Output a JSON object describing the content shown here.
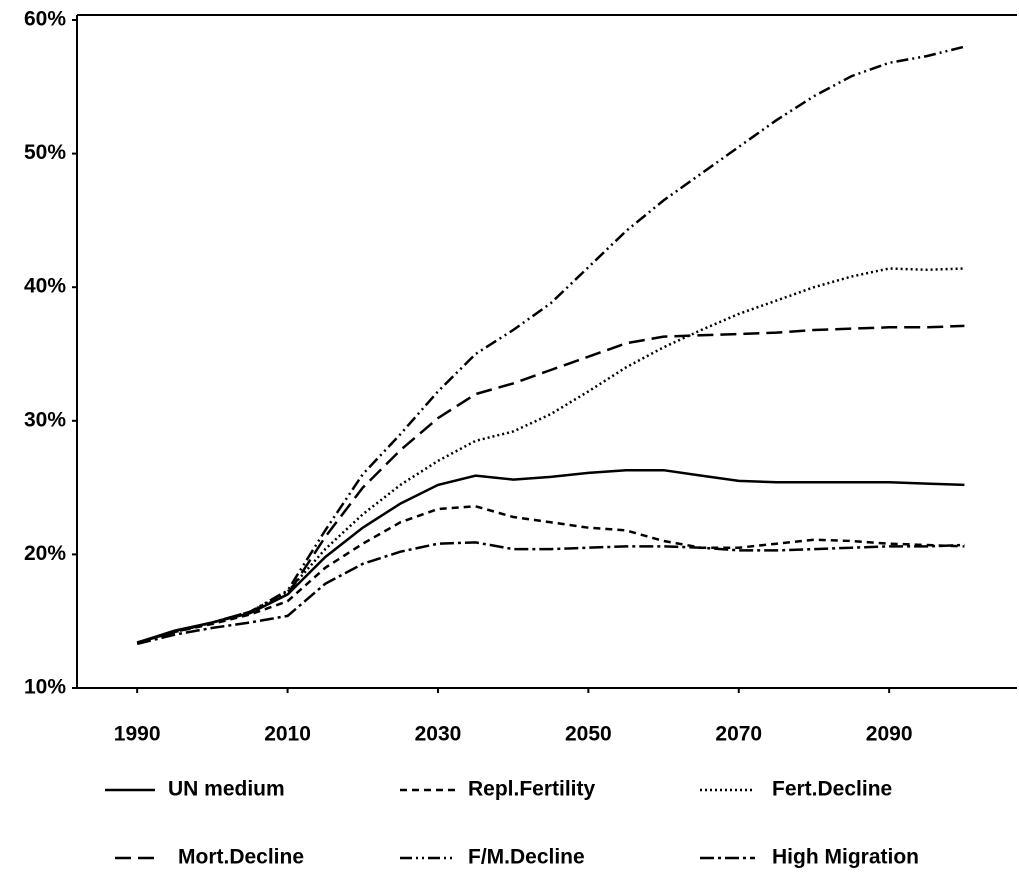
{
  "chart_data": {
    "type": "line",
    "x": [
      1990,
      1995,
      2000,
      2005,
      2010,
      2015,
      2020,
      2025,
      2030,
      2035,
      2040,
      2045,
      2050,
      2055,
      2060,
      2065,
      2070,
      2075,
      2080,
      2085,
      2090,
      2095,
      2100
    ],
    "xlim": [
      1982,
      2107
    ],
    "xticks": [
      1990,
      2010,
      2030,
      2050,
      2070,
      2090
    ],
    "ylim": [
      10,
      60
    ],
    "yticks": [
      {
        "value": 10,
        "label": "10%"
      },
      {
        "value": 20,
        "label": "20%"
      },
      {
        "value": 30,
        "label": "30%"
      },
      {
        "value": 40,
        "label": "40%"
      },
      {
        "value": 50,
        "label": "50%"
      },
      {
        "value": 60,
        "label": "60%"
      }
    ],
    "series": [
      {
        "name": "UN medium",
        "color": "#000000",
        "dash": "none",
        "values": [
          13.4,
          14.3,
          14.9,
          15.6,
          17.0,
          19.8,
          22.0,
          23.8,
          25.2,
          25.9,
          25.6,
          25.8,
          26.1,
          26.3,
          26.3,
          25.9,
          25.5,
          25.4,
          25.4,
          25.4,
          25.4,
          25.3,
          25.2
        ]
      },
      {
        "name": "Repl.Fertility",
        "color": "#000000",
        "dash": "7 5",
        "values": [
          13.4,
          14.2,
          14.8,
          15.5,
          16.5,
          19.0,
          20.8,
          22.4,
          23.4,
          23.6,
          22.8,
          22.4,
          22.0,
          21.8,
          21.0,
          20.5,
          20.5,
          20.8,
          21.1,
          21.0,
          20.8,
          20.7,
          20.6
        ]
      },
      {
        "name": "Fert.Decline",
        "color": "#000000",
        "dash": "2 3",
        "values": [
          13.4,
          14.2,
          14.9,
          15.7,
          17.2,
          20.4,
          23.0,
          25.2,
          27.0,
          28.5,
          29.2,
          30.5,
          32.2,
          34.0,
          35.5,
          36.8,
          38.0,
          39.0,
          40.0,
          40.8,
          41.4,
          41.3,
          41.4
        ]
      },
      {
        "name": "Mort.Decline",
        "color": "#000000",
        "dash": "16 7",
        "values": [
          13.4,
          14.2,
          14.9,
          15.7,
          17.0,
          21.3,
          25.0,
          27.8,
          30.2,
          32.0,
          32.8,
          33.8,
          34.8,
          35.8,
          36.3,
          36.4,
          36.5,
          36.6,
          36.8,
          36.9,
          37.0,
          37.0,
          37.1
        ]
      },
      {
        "name": "F/M.Decline",
        "color": "#000000",
        "dash": "12 4 2 4 2 4",
        "values": [
          13.4,
          14.2,
          14.9,
          15.7,
          17.3,
          21.8,
          26.0,
          29.0,
          32.2,
          35.0,
          36.8,
          38.8,
          41.5,
          44.2,
          46.5,
          48.5,
          50.5,
          52.5,
          54.3,
          55.8,
          56.8,
          57.3,
          58.0
        ]
      },
      {
        "name": "High Migration",
        "color": "#000000",
        "dash": "14 4 3 4",
        "values": [
          13.3,
          14.0,
          14.5,
          14.9,
          15.4,
          17.8,
          19.3,
          20.2,
          20.8,
          20.9,
          20.4,
          20.4,
          20.5,
          20.6,
          20.6,
          20.5,
          20.3,
          20.3,
          20.4,
          20.5,
          20.6,
          20.6,
          20.7
        ]
      }
    ]
  }
}
